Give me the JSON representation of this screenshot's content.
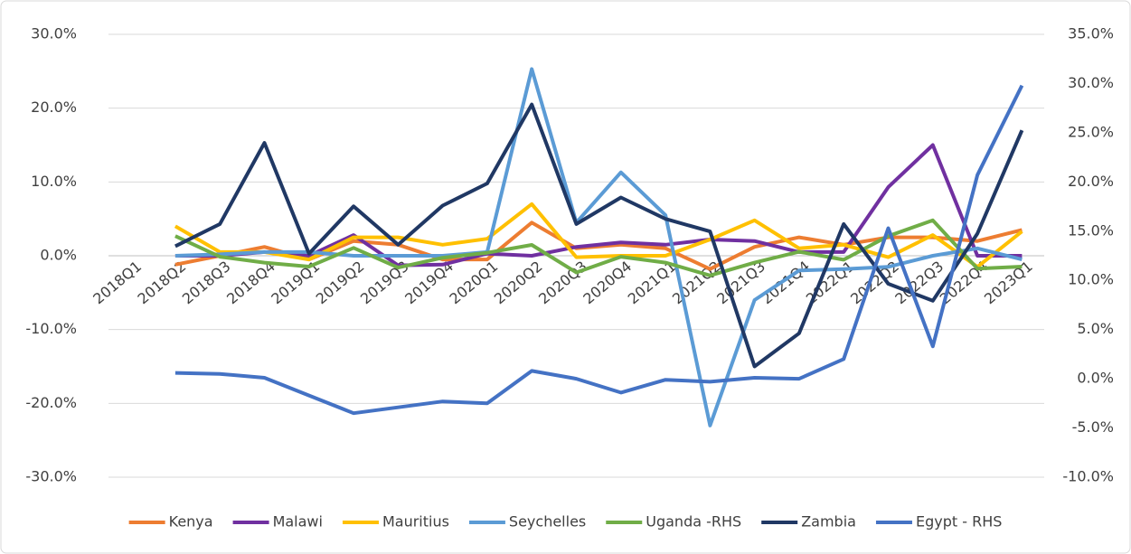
{
  "chart_data": {
    "type": "line",
    "categories": [
      "2018Q1",
      "2018Q2",
      "2018Q3",
      "2018Q4",
      "2019Q1",
      "2019Q2",
      "2019Q3",
      "2019Q4",
      "2020Q1",
      "2020Q2",
      "2020Q3",
      "2020Q4",
      "2021Q1",
      "2021Q2",
      "2021Q3",
      "2021Q4",
      "2022Q1",
      "2022Q2",
      "2022Q3",
      "2022Q4",
      "2023Q1"
    ],
    "series": [
      {
        "name": "Kenya",
        "color": "#ed7d31",
        "values": [
          null,
          -1.2,
          0,
          1.2,
          -0.5,
          2,
          1.5,
          -0.5,
          -0.5,
          4.5,
          1,
          1.5,
          1,
          -1.8,
          1.2,
          2.5,
          1.5,
          2.5,
          2.5,
          2,
          3.5
        ]
      },
      {
        "name": "Malawi",
        "color": "#7030a0",
        "values": [
          null,
          0,
          0,
          0.5,
          0,
          2.8,
          -1.3,
          -1.2,
          0.3,
          0,
          1.2,
          1.8,
          1.5,
          2.2,
          2,
          0.5,
          0.5,
          9.3,
          15,
          0,
          0
        ]
      },
      {
        "name": "Mauritius",
        "color": "#ffc000",
        "values": [
          null,
          4,
          0.5,
          0.5,
          -0.5,
          2.5,
          2.5,
          1.5,
          2.3,
          7,
          -0.2,
          0,
          0,
          2.2,
          4.8,
          1,
          1.5,
          -0.2,
          2.8,
          -1.5,
          3.3
        ]
      },
      {
        "name": "Seychelles",
        "color": "#5b9bd5",
        "values": [
          null,
          0,
          0.2,
          0.5,
          0.5,
          0,
          0,
          0,
          0.5,
          25.3,
          4.5,
          11.3,
          5.5,
          -23,
          -6,
          -2,
          -1.8,
          -1.5,
          0,
          1,
          -0.5
        ]
      },
      {
        "name": "Uganda -RHS",
        "color": "#70ad47",
        "axis": "y2",
        "values": [
          null,
          14.5,
          12.4,
          11.8,
          11.4,
          13.3,
          11.3,
          12.3,
          12.8,
          13.6,
          10.8,
          12.4,
          11.8,
          10.5,
          11.8,
          12.9,
          12.1,
          14.5,
          16.1,
          11.2,
          11.4
        ]
      },
      {
        "name": "Zambia",
        "color": "#203864",
        "values": [
          null,
          1.3,
          4.3,
          15.3,
          0.3,
          6.7,
          1.5,
          6.8,
          9.8,
          20.5,
          4.3,
          7.9,
          5,
          3.3,
          -15,
          -10.5,
          4.3,
          -3.8,
          -6.1,
          3,
          17
        ]
      },
      {
        "name": "Egypt - RHS",
        "color": "#4472c4",
        "axis": "y2",
        "values": [
          null,
          0.6,
          0.5,
          0.1,
          -1.7,
          -3.5,
          -2.9,
          -2.3,
          -2.5,
          0.8,
          0,
          -1.4,
          -0.1,
          -0.3,
          0.1,
          0,
          2,
          15.3,
          3.3,
          20.7,
          29.8
        ]
      }
    ],
    "ylim": [
      -30,
      30
    ],
    "yticks": [
      {
        "value": 30,
        "label": "30.0%"
      },
      {
        "value": 20,
        "label": "20.0%"
      },
      {
        "value": 10,
        "label": "10.0%"
      },
      {
        "value": 0,
        "label": "0.0%"
      },
      {
        "value": -10,
        "label": "-10.0%"
      },
      {
        "value": -20,
        "label": "-20.0%"
      },
      {
        "value": -30,
        "label": "-30.0%"
      }
    ],
    "y2lim": [
      -10,
      35
    ],
    "y2ticks": [
      {
        "value": 35,
        "label": "35.0%"
      },
      {
        "value": 30,
        "label": "30.0%"
      },
      {
        "value": 25,
        "label": "25.0%"
      },
      {
        "value": 20,
        "label": "20.0%"
      },
      {
        "value": 15,
        "label": "15.0%"
      },
      {
        "value": 10,
        "label": "10.0%"
      },
      {
        "value": 5,
        "label": "5.0%"
      },
      {
        "value": 0,
        "label": "0.0%"
      },
      {
        "value": -5,
        "label": "-5.0%"
      },
      {
        "value": -10,
        "label": "-10.0%"
      }
    ],
    "grid": true,
    "legend": "bottom"
  }
}
